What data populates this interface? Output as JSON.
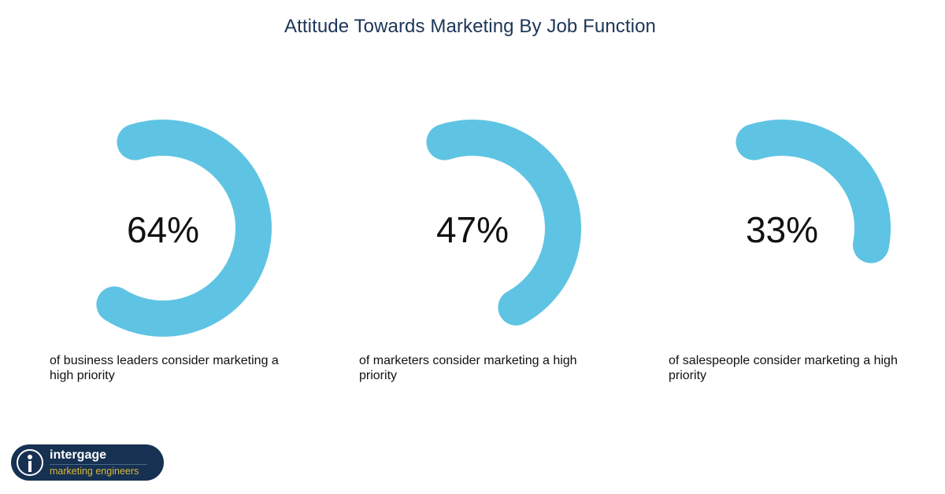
{
  "chart_data": {
    "type": "pie",
    "title": "Attitude Towards Marketing By Job Function",
    "items": [
      {
        "label": "64%",
        "value": 64,
        "caption": "of business leaders consider marketing a high priority"
      },
      {
        "label": "47%",
        "value": 47,
        "caption": "of marketers consider marketing a high priority"
      },
      {
        "label": "33%",
        "value": 33,
        "caption": "of salespeople consider marketing a high priority"
      }
    ],
    "colors": {
      "arc": "#5fc4e3",
      "title": "#1d3557"
    }
  },
  "logo": {
    "name": "intergage",
    "tagline": "marketing engineers",
    "background": "#173152",
    "tagline_color": "#d8b93a"
  }
}
